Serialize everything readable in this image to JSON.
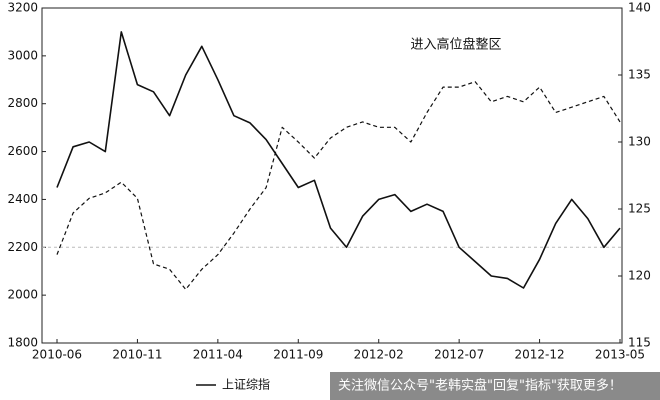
{
  "chart_data": {
    "type": "line",
    "annotation": "进入高位盘整区",
    "watermark": "关注微信公众号\"老韩实盘\"回复\"指标\"获取更多！",
    "x": [
      "2010-06",
      "2010-07",
      "2010-08",
      "2010-09",
      "2010-10",
      "2010-11",
      "2010-12",
      "2011-01",
      "2011-02",
      "2011-03",
      "2011-04",
      "2011-05",
      "2011-06",
      "2011-07",
      "2011-08",
      "2011-09",
      "2011-10",
      "2011-11",
      "2011-12",
      "2012-01",
      "2012-02",
      "2012-03",
      "2012-04",
      "2012-05",
      "2012-06",
      "2012-07",
      "2012-08",
      "2012-09",
      "2012-10",
      "2012-11",
      "2012-12",
      "2013-01",
      "2013-02",
      "2013-03",
      "2013-04",
      "2013-05"
    ],
    "series": [
      {
        "name": "上证综指",
        "color": "#111111",
        "line_style": "solid",
        "values": [
          2450,
          2620,
          2640,
          2600,
          3100,
          2880,
          2850,
          2750,
          2920,
          3040,
          2900,
          2750,
          2720,
          2650,
          2550,
          2450,
          2480,
          2280,
          2200,
          2330,
          2400,
          2420,
          2350,
          2380,
          2350,
          2200,
          2140,
          2080,
          2070,
          2030,
          2150,
          2300,
          2400,
          2320,
          2200,
          2280
        ]
      },
      {
        "color": "#111111",
        "line_style": "dashed",
        "axis": "y2",
        "values": [
          121.6,
          124.7,
          125.8,
          126.2,
          127,
          125.8,
          120.9,
          120.5,
          119,
          120.5,
          121.6,
          123.2,
          125,
          126.6,
          131.1,
          130,
          128.8,
          130.3,
          131.1,
          131.5,
          131.1,
          131.1,
          130,
          132.2,
          134.1,
          134.1,
          134.5,
          133,
          133.4,
          133,
          134.1,
          132.2,
          132.6,
          133,
          133.4,
          131.5
        ]
      }
    ],
    "ylim": [
      1800,
      3200
    ],
    "yticks": [
      1800,
      2000,
      2200,
      2400,
      2600,
      2800,
      3000,
      3200
    ],
    "y2lim": [
      115,
      140
    ],
    "y2ticks": [
      115,
      120,
      125,
      130,
      135,
      140
    ],
    "reference_lines": [
      2200
    ]
  }
}
